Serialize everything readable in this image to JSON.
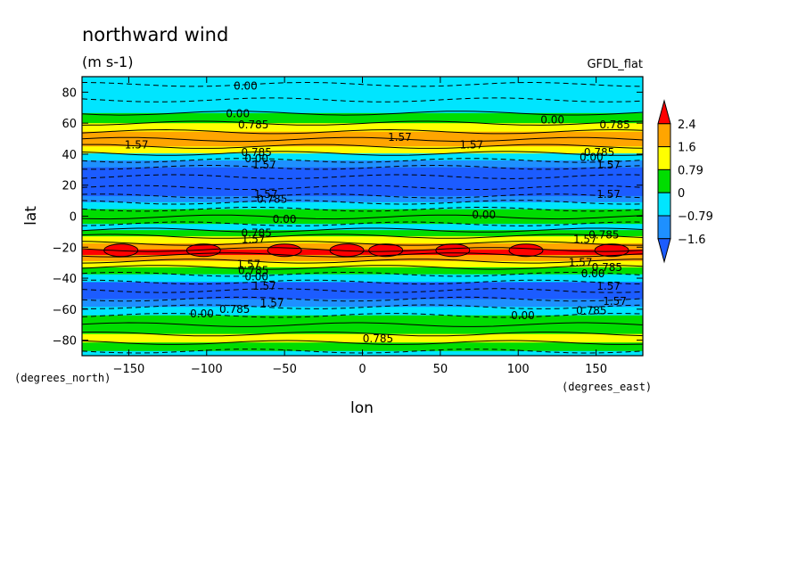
{
  "chart_data": {
    "type": "heatmap",
    "title": "northward wind",
    "units": "(m s-1)",
    "model": "GFDL_flat",
    "xlabel": "lon",
    "ylabel": "lat",
    "x_units": "(degrees_east)",
    "y_units": "(degrees_north)",
    "xlim": [
      -180,
      180
    ],
    "ylim": [
      -90,
      90
    ],
    "x_ticks": [
      -150,
      -100,
      -50,
      0,
      50,
      100,
      150
    ],
    "y_ticks": [
      -80,
      -60,
      -40,
      -20,
      0,
      20,
      40,
      60,
      80
    ],
    "colorbar": {
      "labels": [
        "2.4",
        "1.6",
        "0.79",
        "0",
        "-0.79",
        "-1.6"
      ],
      "colors": [
        "#ff0000",
        "#ffa500",
        "#ffff00",
        "#00dd00",
        "#00e5ff",
        "#1e90ff",
        "#1c5cff"
      ]
    },
    "band_colors": {
      "le_-1.6": "#1c5cff",
      "-1.6_-0.79": "#1e90ff",
      "-0.79_0": "#00e5ff",
      "0_0.79": "#00dd00",
      "0.79_1.6": "#ffff00",
      "1.6_2.4": "#ffa500",
      "gt_2.4": "#ff0000"
    },
    "zonal_profile": [
      {
        "lat": 90,
        "value": -0.5
      },
      {
        "lat": 80,
        "value": -0.6
      },
      {
        "lat": 70,
        "value": -0.4
      },
      {
        "lat": 63,
        "value": 0.4
      },
      {
        "lat": 57,
        "value": 1.0
      },
      {
        "lat": 52,
        "value": 1.7
      },
      {
        "lat": 47,
        "value": 1.9
      },
      {
        "lat": 43,
        "value": 1.2
      },
      {
        "lat": 38,
        "value": -0.3
      },
      {
        "lat": 34,
        "value": -1.2
      },
      {
        "lat": 29,
        "value": -1.8
      },
      {
        "lat": 22,
        "value": -1.9
      },
      {
        "lat": 15,
        "value": -1.7
      },
      {
        "lat": 11,
        "value": -0.9
      },
      {
        "lat": 7,
        "value": -0.4
      },
      {
        "lat": 2,
        "value": 0.2
      },
      {
        "lat": -3,
        "value": 0.1
      },
      {
        "lat": -7,
        "value": -0.4
      },
      {
        "lat": -11,
        "value": 0.6
      },
      {
        "lat": -15,
        "value": 1.2
      },
      {
        "lat": -20,
        "value": 2.1
      },
      {
        "lat": -23,
        "value": 2.5
      },
      {
        "lat": -27,
        "value": 2.0
      },
      {
        "lat": -31,
        "value": 1.2
      },
      {
        "lat": -35,
        "value": 0.4
      },
      {
        "lat": -40,
        "value": -0.6
      },
      {
        "lat": -45,
        "value": -1.8
      },
      {
        "lat": -51,
        "value": -1.8
      },
      {
        "lat": -56,
        "value": -1.0
      },
      {
        "lat": -61,
        "value": -0.5
      },
      {
        "lat": -67,
        "value": 0.3
      },
      {
        "lat": -73,
        "value": 0.5
      },
      {
        "lat": -79,
        "value": 0.9
      },
      {
        "lat": -84,
        "value": 0.3
      },
      {
        "lat": -90,
        "value": -0.6
      }
    ],
    "red_cells_lon": [
      -155,
      -102,
      -50,
      -10,
      15,
      58,
      105,
      160
    ],
    "red_cell_lat": -22,
    "contour_labels": [
      {
        "text": "0.00",
        "lon": -75,
        "lat": 84
      },
      {
        "text": "0.00",
        "lon": -80,
        "lat": 66
      },
      {
        "text": "0.785",
        "lon": -70,
        "lat": 59
      },
      {
        "text": "0.00",
        "lon": 122,
        "lat": 62
      },
      {
        "text": "0.785",
        "lon": 162,
        "lat": 59
      },
      {
        "text": "1.57",
        "lon": -145,
        "lat": 46
      },
      {
        "text": "1.57",
        "lon": 24,
        "lat": 51
      },
      {
        "text": "1.57",
        "lon": 70,
        "lat": 46
      },
      {
        "text": "0.785",
        "lon": -68,
        "lat": 41
      },
      {
        "text": "0.00",
        "lon": -68,
        "lat": 37
      },
      {
        "text": "1.57",
        "lon": -63,
        "lat": 33
      },
      {
        "text": "0.785",
        "lon": 152,
        "lat": 41
      },
      {
        "text": "0.00",
        "lon": 147,
        "lat": 38
      },
      {
        "text": "1.57",
        "lon": 158,
        "lat": 33
      },
      {
        "text": "1.57",
        "lon": -62,
        "lat": 14
      },
      {
        "text": "0.785",
        "lon": -58,
        "lat": 11
      },
      {
        "text": "1.57",
        "lon": 158,
        "lat": 14
      },
      {
        "text": "0.00",
        "lon": -50,
        "lat": -2
      },
      {
        "text": "0.00",
        "lon": 78,
        "lat": 1
      },
      {
        "text": "0.785",
        "lon": -68,
        "lat": -11
      },
      {
        "text": "1.57",
        "lon": -70,
        "lat": -15
      },
      {
        "text": "1.57",
        "lon": 143,
        "lat": -15
      },
      {
        "text": "0.785",
        "lon": 155,
        "lat": -12
      },
      {
        "text": "1.57",
        "lon": -73,
        "lat": -31
      },
      {
        "text": "0.785",
        "lon": -70,
        "lat": -35
      },
      {
        "text": "0.00",
        "lon": -68,
        "lat": -39
      },
      {
        "text": "1.57",
        "lon": 140,
        "lat": -30
      },
      {
        "text": "0.785",
        "lon": 157,
        "lat": -33
      },
      {
        "text": "0.00",
        "lon": 148,
        "lat": -37
      },
      {
        "text": "1.57",
        "lon": -63,
        "lat": -45
      },
      {
        "text": "1.57",
        "lon": 158,
        "lat": -45
      },
      {
        "text": "1.57",
        "lon": -58,
        "lat": -56
      },
      {
        "text": "1.57",
        "lon": 162,
        "lat": -55
      },
      {
        "text": "0.00",
        "lon": -103,
        "lat": -63
      },
      {
        "text": "0.785",
        "lon": -82,
        "lat": -60
      },
      {
        "text": "0.00",
        "lon": 103,
        "lat": -64
      },
      {
        "text": "0.785",
        "lon": 147,
        "lat": -61
      },
      {
        "text": "0.785",
        "lon": 10,
        "lat": -79
      }
    ]
  }
}
